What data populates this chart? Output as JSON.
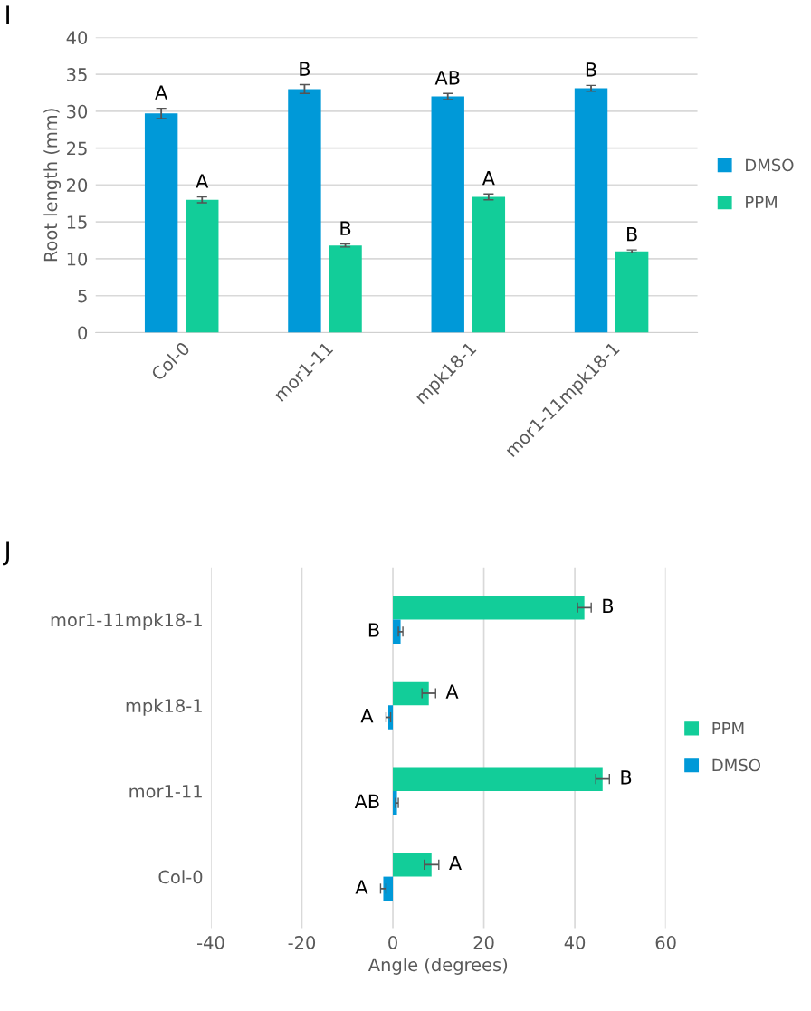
{
  "chart_data": [
    {
      "type": "bar",
      "title": "I",
      "ylabel": "Root length (mm)",
      "categories": [
        "Col-0",
        "mor1-11",
        "mpk18-1",
        "mor1-11mpk18-1"
      ],
      "series": [
        {
          "name": "DMSO",
          "color": "#0099d8",
          "values": [
            29.7,
            33.0,
            32.0,
            33.1
          ],
          "errors": [
            0.7,
            0.6,
            0.4,
            0.4
          ],
          "value_labels": [
            "A",
            "B",
            "AB",
            "B"
          ]
        },
        {
          "name": "PPM",
          "color": "#12cd99",
          "values": [
            18.0,
            11.8,
            18.4,
            11.0
          ],
          "errors": [
            0.4,
            0.2,
            0.4,
            0.2
          ],
          "value_labels": [
            "A",
            "B",
            "A",
            "B"
          ]
        }
      ],
      "ylim": [
        0,
        40
      ],
      "yticks": [
        0,
        5,
        10,
        15,
        20,
        25,
        30,
        35,
        40
      ],
      "grid": "y",
      "legend": "right"
    },
    {
      "type": "bar",
      "orientation": "horizontal",
      "title": "J",
      "xlabel": "Angle (degrees)",
      "categories": [
        "mor1-11mpk18-1",
        "mpk18-1",
        "mor1-11",
        "Col-0"
      ],
      "series": [
        {
          "name": "PPM",
          "color": "#12cd99",
          "values": [
            42.1,
            7.9,
            46.1,
            8.5
          ],
          "errors": [
            1.5,
            1.5,
            1.5,
            1.6
          ],
          "value_labels": [
            "B",
            "A",
            "B",
            "A"
          ]
        },
        {
          "name": "DMSO",
          "color": "#0099d8",
          "values": [
            1.7,
            -1.0,
            0.9,
            -2.1
          ],
          "errors": [
            0.5,
            0.5,
            0.3,
            0.6
          ],
          "value_labels": [
            "B",
            "A",
            "AB",
            "A"
          ]
        }
      ],
      "xlim": [
        -40,
        60
      ],
      "xticks": [
        -40,
        -20,
        0,
        20,
        40,
        60
      ],
      "grid": "x",
      "legend": "right"
    }
  ]
}
